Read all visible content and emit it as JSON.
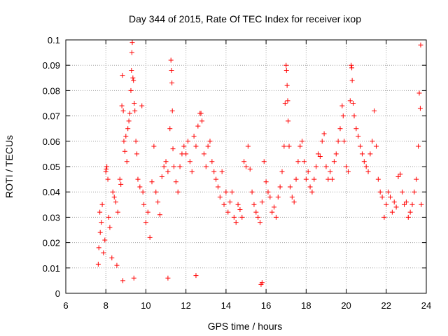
{
  "chart_data": {
    "type": "scatter",
    "title": "Day 344 of 2015, Rate Of TEC Index for receiver ixop",
    "xlabel": "GPS time / hours",
    "ylabel": "ROTI / TECUs",
    "xlim": [
      6,
      24
    ],
    "ylim": [
      0,
      0.1
    ],
    "xticks": [
      6,
      8,
      10,
      12,
      14,
      16,
      18,
      20,
      22,
      24
    ],
    "yticks": [
      0,
      0.01,
      0.02,
      0.03,
      0.04,
      0.05,
      0.06,
      0.07,
      0.08,
      0.09,
      0.1
    ],
    "ytick_labels": [
      "0",
      "0.01",
      "0.02",
      "0.03",
      "0.04",
      "0.05",
      "0.06",
      "0.07",
      "0.08",
      "0.09",
      "0.1"
    ],
    "xtick_labels": [
      "6",
      "8",
      "10",
      "12",
      "14",
      "16",
      "18",
      "20",
      "22",
      "24"
    ],
    "grid": true,
    "marker": "+",
    "color": "#ff0000",
    "series": [
      {
        "points": [
          [
            7.62,
            0.0115
          ],
          [
            7.65,
            0.018
          ],
          [
            7.7,
            0.032
          ],
          [
            7.72,
            0.024
          ],
          [
            7.78,
            0.028
          ],
          [
            7.82,
            0.035
          ],
          [
            7.88,
            0.016
          ],
          [
            7.95,
            0.021
          ],
          [
            8.0,
            0.048
          ],
          [
            8.02,
            0.049
          ],
          [
            8.05,
            0.05
          ],
          [
            8.1,
            0.045
          ],
          [
            8.15,
            0.03
          ],
          [
            8.2,
            0.026
          ],
          [
            8.3,
            0.014
          ],
          [
            8.35,
            0.04
          ],
          [
            8.42,
            0.038
          ],
          [
            8.5,
            0.036
          ],
          [
            8.55,
            0.011
          ],
          [
            8.6,
            0.032
          ],
          [
            8.7,
            0.045
          ],
          [
            8.75,
            0.043
          ],
          [
            8.8,
            0.074
          ],
          [
            8.83,
            0.086
          ],
          [
            8.87,
            0.072
          ],
          [
            8.9,
            0.06
          ],
          [
            8.95,
            0.056
          ],
          [
            9.0,
            0.062
          ],
          [
            9.05,
            0.052
          ],
          [
            9.1,
            0.065
          ],
          [
            9.15,
            0.068
          ],
          [
            9.2,
            0.071
          ],
          [
            9.25,
            0.08
          ],
          [
            9.28,
            0.088
          ],
          [
            9.3,
            0.095
          ],
          [
            9.32,
            0.099
          ],
          [
            9.35,
            0.085
          ],
          [
            9.38,
            0.084
          ],
          [
            9.42,
            0.075
          ],
          [
            9.45,
            0.072
          ],
          [
            9.5,
            0.06
          ],
          [
            9.55,
            0.055
          ],
          [
            9.6,
            0.045
          ],
          [
            9.7,
            0.042
          ],
          [
            9.8,
            0.074
          ],
          [
            9.85,
            0.04
          ],
          [
            9.9,
            0.035
          ],
          [
            10.0,
            0.028
          ],
          [
            10.1,
            0.032
          ],
          [
            10.2,
            0.022
          ],
          [
            10.3,
            0.044
          ],
          [
            10.4,
            0.058
          ],
          [
            10.5,
            0.04
          ],
          [
            10.6,
            0.036
          ],
          [
            10.7,
            0.031
          ],
          [
            10.8,
            0.046
          ],
          [
            10.9,
            0.05
          ],
          [
            11.0,
            0.052
          ],
          [
            11.1,
            0.048
          ],
          [
            11.2,
            0.065
          ],
          [
            11.25,
            0.092
          ],
          [
            11.28,
            0.088
          ],
          [
            11.3,
            0.083
          ],
          [
            11.32,
            0.072
          ],
          [
            11.35,
            0.057
          ],
          [
            11.4,
            0.05
          ],
          [
            11.5,
            0.044
          ],
          [
            11.6,
            0.04
          ],
          [
            11.7,
            0.05
          ],
          [
            11.8,
            0.055
          ],
          [
            11.9,
            0.058
          ],
          [
            12.0,
            0.055
          ],
          [
            12.1,
            0.06
          ],
          [
            12.2,
            0.052
          ],
          [
            12.3,
            0.048
          ],
          [
            12.4,
            0.062
          ],
          [
            12.5,
            0.058
          ],
          [
            12.6,
            0.066
          ],
          [
            12.7,
            0.071
          ],
          [
            12.75,
            0.071
          ],
          [
            12.8,
            0.068
          ],
          [
            12.9,
            0.055
          ],
          [
            13.0,
            0.05
          ],
          [
            13.1,
            0.058
          ],
          [
            13.2,
            0.06
          ],
          [
            13.3,
            0.052
          ],
          [
            13.4,
            0.048
          ],
          [
            13.5,
            0.045
          ],
          [
            13.6,
            0.042
          ],
          [
            13.7,
            0.038
          ],
          [
            13.8,
            0.048
          ],
          [
            13.9,
            0.035
          ],
          [
            14.0,
            0.04
          ],
          [
            14.1,
            0.032
          ],
          [
            14.2,
            0.036
          ],
          [
            14.3,
            0.04
          ],
          [
            14.4,
            0.03
          ],
          [
            14.5,
            0.028
          ],
          [
            14.6,
            0.035
          ],
          [
            14.7,
            0.033
          ],
          [
            14.8,
            0.03
          ],
          [
            14.9,
            0.052
          ],
          [
            15.0,
            0.05
          ],
          [
            15.1,
            0.058
          ],
          [
            15.2,
            0.049
          ],
          [
            15.3,
            0.04
          ],
          [
            15.4,
            0.035
          ],
          [
            15.5,
            0.032
          ],
          [
            15.6,
            0.03
          ],
          [
            15.7,
            0.028
          ],
          [
            15.8,
            0.036
          ],
          [
            15.9,
            0.052
          ],
          [
            16.0,
            0.044
          ],
          [
            16.1,
            0.04
          ],
          [
            16.2,
            0.038
          ],
          [
            16.3,
            0.032
          ],
          [
            16.4,
            0.034
          ],
          [
            16.5,
            0.03
          ],
          [
            16.6,
            0.038
          ],
          [
            16.7,
            0.042
          ],
          [
            16.8,
            0.048
          ],
          [
            16.9,
            0.058
          ],
          [
            16.95,
            0.075
          ],
          [
            17.0,
            0.09
          ],
          [
            17.02,
            0.088
          ],
          [
            17.05,
            0.082
          ],
          [
            17.08,
            0.076
          ],
          [
            17.1,
            0.068
          ],
          [
            17.15,
            0.058
          ],
          [
            17.2,
            0.042
          ],
          [
            17.3,
            0.038
          ],
          [
            17.4,
            0.036
          ],
          [
            17.5,
            0.045
          ],
          [
            17.6,
            0.052
          ],
          [
            17.7,
            0.058
          ],
          [
            17.8,
            0.06
          ],
          [
            17.9,
            0.052
          ],
          [
            18.0,
            0.045
          ],
          [
            18.1,
            0.048
          ],
          [
            18.2,
            0.042
          ],
          [
            18.3,
            0.04
          ],
          [
            18.4,
            0.045
          ],
          [
            18.5,
            0.05
          ],
          [
            18.6,
            0.055
          ],
          [
            18.7,
            0.054
          ],
          [
            18.8,
            0.06
          ],
          [
            18.9,
            0.063
          ],
          [
            19.0,
            0.05
          ],
          [
            19.1,
            0.045
          ],
          [
            19.2,
            0.048
          ],
          [
            19.3,
            0.045
          ],
          [
            19.4,
            0.052
          ],
          [
            19.5,
            0.055
          ],
          [
            19.6,
            0.06
          ],
          [
            19.7,
            0.065
          ],
          [
            19.8,
            0.074
          ],
          [
            19.85,
            0.07
          ],
          [
            19.9,
            0.06
          ],
          [
            20.0,
            0.05
          ],
          [
            20.1,
            0.048
          ],
          [
            20.2,
            0.076
          ],
          [
            20.25,
            0.09
          ],
          [
            20.28,
            0.089
          ],
          [
            20.3,
            0.084
          ],
          [
            20.35,
            0.075
          ],
          [
            20.4,
            0.07
          ],
          [
            20.5,
            0.065
          ],
          [
            20.6,
            0.062
          ],
          [
            20.7,
            0.058
          ],
          [
            20.8,
            0.055
          ],
          [
            20.9,
            0.052
          ],
          [
            21.0,
            0.05
          ],
          [
            21.1,
            0.048
          ],
          [
            21.2,
            0.055
          ],
          [
            21.3,
            0.06
          ],
          [
            21.4,
            0.072
          ],
          [
            21.5,
            0.058
          ],
          [
            21.6,
            0.045
          ],
          [
            21.7,
            0.04
          ],
          [
            21.8,
            0.038
          ],
          [
            21.9,
            0.03
          ],
          [
            22.0,
            0.035
          ],
          [
            22.1,
            0.04
          ],
          [
            22.2,
            0.038
          ],
          [
            22.3,
            0.032
          ],
          [
            22.4,
            0.036
          ],
          [
            22.5,
            0.034
          ],
          [
            22.6,
            0.046
          ],
          [
            22.7,
            0.047
          ],
          [
            22.8,
            0.04
          ],
          [
            22.9,
            0.035
          ],
          [
            23.0,
            0.036
          ],
          [
            23.1,
            0.03
          ],
          [
            23.2,
            0.032
          ],
          [
            23.3,
            0.035
          ],
          [
            23.4,
            0.04
          ],
          [
            23.5,
            0.045
          ],
          [
            23.6,
            0.058
          ],
          [
            23.65,
            0.079
          ],
          [
            23.7,
            0.073
          ],
          [
            23.72,
            0.098
          ],
          [
            23.75,
            0.035
          ],
          [
            15.75,
            0.0035
          ],
          [
            15.8,
            0.0042
          ],
          [
            8.85,
            0.005
          ],
          [
            9.4,
            0.006
          ],
          [
            11.1,
            0.006
          ],
          [
            12.5,
            0.007
          ]
        ]
      }
    ]
  }
}
